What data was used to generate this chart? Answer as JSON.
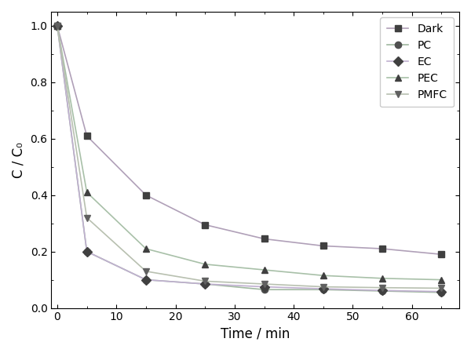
{
  "series": [
    {
      "label": "Dark",
      "marker": "s",
      "color": "#404040",
      "linestyle": "-",
      "linecolor": "#b0a0b8",
      "x": [
        0,
        5,
        15,
        25,
        35,
        45,
        55,
        65
      ],
      "y": [
        1.0,
        0.61,
        0.4,
        0.295,
        0.245,
        0.22,
        0.21,
        0.19
      ]
    },
    {
      "label": "PC",
      "marker": "o",
      "color": "#505050",
      "linestyle": "-",
      "linecolor": "#a0b8a0",
      "x": [
        0,
        5,
        15,
        25,
        35,
        45,
        55,
        65
      ],
      "y": [
        1.0,
        0.2,
        0.1,
        0.085,
        0.065,
        0.065,
        0.06,
        0.055
      ]
    },
    {
      "label": "EC",
      "marker": "D",
      "color": "#404040",
      "linestyle": "-",
      "linecolor": "#c0b0d0",
      "x": [
        0,
        5,
        15,
        25,
        35,
        45,
        55,
        65
      ],
      "y": [
        1.0,
        0.2,
        0.1,
        0.085,
        0.075,
        0.068,
        0.062,
        0.058
      ]
    },
    {
      "label": "PEC",
      "marker": "^",
      "color": "#404040",
      "linestyle": "-",
      "linecolor": "#a8c0a8",
      "x": [
        0,
        5,
        15,
        25,
        35,
        45,
        55,
        65
      ],
      "y": [
        1.0,
        0.41,
        0.21,
        0.155,
        0.135,
        0.115,
        0.105,
        0.1
      ]
    },
    {
      "label": "PMFC",
      "marker": "v",
      "color": "#606060",
      "linestyle": "-",
      "linecolor": "#b8c0b0",
      "x": [
        0,
        5,
        15,
        25,
        35,
        45,
        55,
        65
      ],
      "y": [
        1.0,
        0.32,
        0.13,
        0.095,
        0.085,
        0.075,
        0.072,
        0.07
      ]
    }
  ],
  "xlabel": "Time / min",
  "ylabel": "C / C₀",
  "xlim": [
    -1,
    68
  ],
  "ylim": [
    0.0,
    1.05
  ],
  "xticks": [
    0,
    10,
    20,
    30,
    40,
    50,
    60
  ],
  "yticks": [
    0.0,
    0.2,
    0.4,
    0.6,
    0.8,
    1.0
  ],
  "legend_loc": "upper right",
  "background_color": "#ffffff",
  "figure_facecolor": "#ffffff"
}
